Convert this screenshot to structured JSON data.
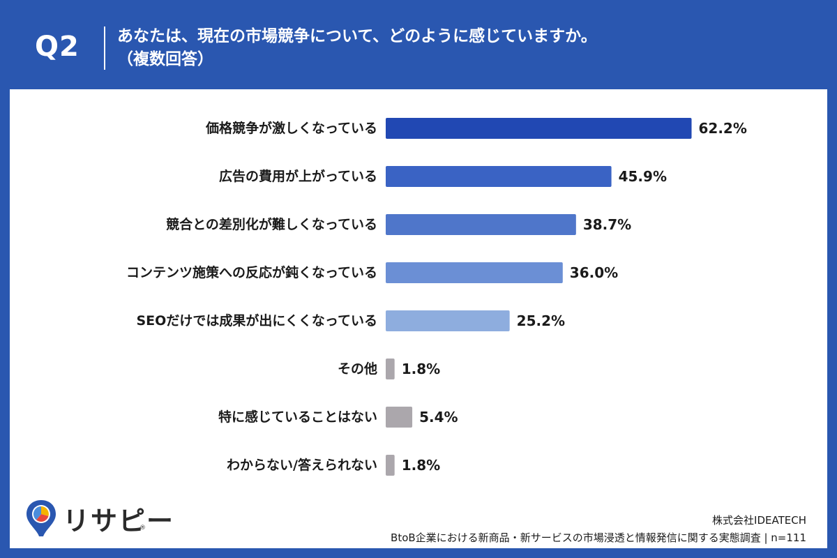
{
  "header": {
    "question_number": "Q2",
    "question": "あなたは、現在の市場競争について、どのように感じていますか。\n（複数回答）"
  },
  "colors": {
    "frame": "#2a57b0",
    "bar_gray": "#aba7ac"
  },
  "chart_data": {
    "type": "bar",
    "orientation": "horizontal",
    "categories": [
      "価格競争が激しくなっている",
      "広告の費用が上がっている",
      "競合との差別化が難しくなっている",
      "コンテンツ施策への反応が鈍くなっている",
      "SEOだけでは成果が出にくくなっている",
      "その他",
      "特に感じていることはない",
      "わからない/答えられない"
    ],
    "values": [
      62.2,
      45.9,
      38.7,
      36.0,
      25.2,
      1.8,
      5.4,
      1.8
    ],
    "value_labels": [
      "62.2%",
      "45.9%",
      "38.7%",
      "36.0%",
      "25.2%",
      "1.8%",
      "5.4%",
      "1.8%"
    ],
    "bar_colors": [
      "#2148b3",
      "#3a63c4",
      "#4f76ca",
      "#6b8fd5",
      "#8eadde",
      "#aba7ac",
      "#aba7ac",
      "#aba7ac"
    ],
    "xlim": [
      0,
      100
    ],
    "grid": false,
    "legend": "none"
  },
  "footer": {
    "company": "株式会社IDEATECH",
    "survey": "BtoB企業における新商品・新サービスの市場浸透と情報発信に関する実態調査 | n=111"
  },
  "logo": {
    "text": "リサピー",
    "registered": "®"
  }
}
